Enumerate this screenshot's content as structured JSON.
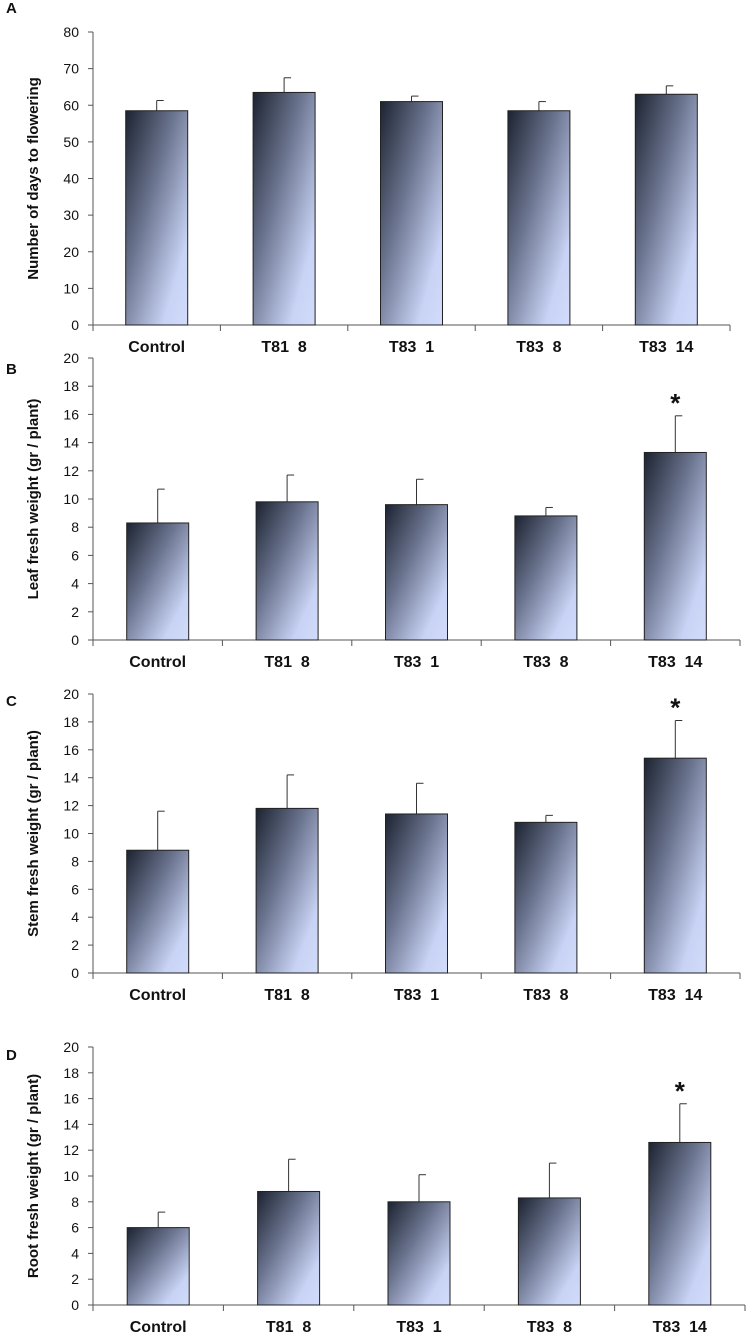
{
  "colors": {
    "bar_dark": "#1c2331",
    "bar_light": "#c8d3f5",
    "axis": "#555555",
    "text": "#111111"
  },
  "chart_data": [
    {
      "panel": "A",
      "type": "bar",
      "categories": [
        "Control",
        "T81  8",
        "T83  1",
        "T83  8",
        "T83  14"
      ],
      "values": [
        58.5,
        63.5,
        61,
        58.5,
        63
      ],
      "errors": [
        2.8,
        4,
        1.5,
        2.5,
        2.3
      ],
      "significance": [
        "",
        "",
        "",
        "",
        ""
      ],
      "ylabel": "Number of days to flowering",
      "ylim": [
        0,
        80
      ],
      "yticks": [
        0,
        10,
        20,
        30,
        40,
        50,
        60,
        70,
        80
      ]
    },
    {
      "panel": "B",
      "type": "bar",
      "categories": [
        "Control",
        "T81  8",
        "T83  1",
        "T83  8",
        "T83  14"
      ],
      "values": [
        8.3,
        9.8,
        9.6,
        8.8,
        13.3
      ],
      "errors": [
        2.4,
        1.9,
        1.8,
        0.6,
        2.6
      ],
      "significance": [
        "",
        "",
        "",
        "",
        "*"
      ],
      "ylabel": "Leaf fresh weight (gr / plant)",
      "ylim": [
        0,
        20
      ],
      "yticks": [
        0,
        2,
        4,
        6,
        8,
        10,
        12,
        14,
        16,
        18,
        20
      ]
    },
    {
      "panel": "C",
      "type": "bar",
      "categories": [
        "Control",
        "T81  8",
        "T83  1",
        "T83  8",
        "T83  14"
      ],
      "values": [
        8.8,
        11.8,
        11.4,
        10.8,
        15.4
      ],
      "errors": [
        2.8,
        2.4,
        2.2,
        0.5,
        2.7
      ],
      "significance": [
        "",
        "",
        "",
        "",
        "*"
      ],
      "ylabel": "Stem fresh weight (gr / plant)",
      "ylim": [
        0,
        20
      ],
      "yticks": [
        0,
        2,
        4,
        6,
        8,
        10,
        12,
        14,
        16,
        18,
        20
      ]
    },
    {
      "panel": "D",
      "type": "bar",
      "categories": [
        "Control",
        "T81  8",
        "T83  1",
        "T83  8",
        "T83  14"
      ],
      "values": [
        6,
        8.8,
        8,
        8.3,
        12.6
      ],
      "errors": [
        1.2,
        2.5,
        2.1,
        2.7,
        3
      ],
      "significance": [
        "",
        "",
        "",
        "",
        "*"
      ],
      "ylabel": "Root fresh weight (gr / plant)",
      "ylim": [
        0,
        20
      ],
      "yticks": [
        0,
        2,
        4,
        6,
        8,
        10,
        12,
        14,
        16,
        18,
        20
      ]
    }
  ]
}
